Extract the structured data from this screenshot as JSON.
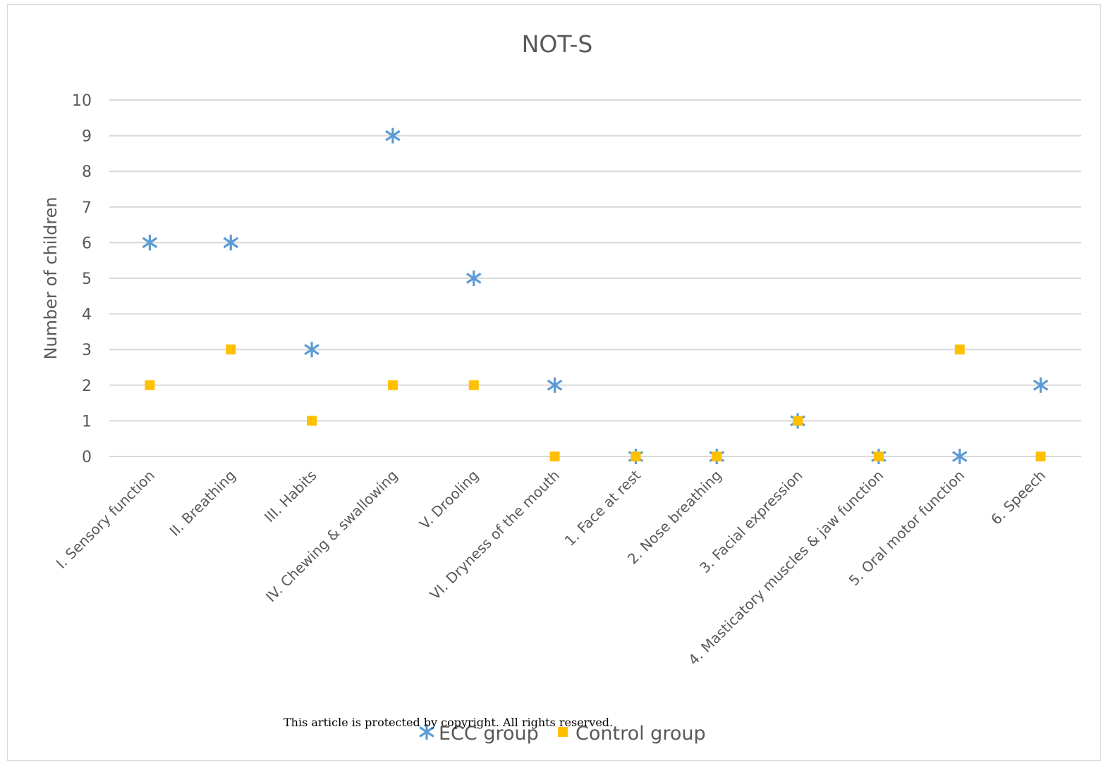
{
  "copyright_notice": "This article is protected by copyright. All rights reserved.",
  "chart_data": {
    "type": "scatter",
    "title": "NOT-S",
    "ylabel": "Number of children",
    "xlabel": "",
    "ylim": [
      0,
      10
    ],
    "yticks": [
      0,
      1,
      2,
      3,
      4,
      5,
      6,
      7,
      8,
      9,
      10
    ],
    "grid": true,
    "legend_position": "bottom",
    "categories": [
      "I. Sensory function",
      "II. Breathing",
      "III. Habits",
      "IV. Chewing & swallowing",
      "V. Drooling",
      "VI. Dryness of the mouth",
      "1. Face at rest",
      "2. Nose breathing",
      "3. Facial expression",
      "4. Masticatory muscles & jaw function",
      "5. Oral motor function",
      "6. Speech"
    ],
    "series": [
      {
        "name": "ECC group",
        "marker": "asterisk",
        "color": "#5b9bd5",
        "values": [
          6,
          6,
          3,
          9,
          5,
          2,
          0,
          0,
          1,
          0,
          0,
          2
        ]
      },
      {
        "name": "Control group",
        "marker": "square",
        "color": "#ffc000",
        "values": [
          2,
          3,
          1,
          2,
          2,
          0,
          0,
          0,
          1,
          0,
          3,
          0
        ]
      }
    ],
    "gridline_color": "#d9d9d9",
    "text_color": "#595959"
  }
}
